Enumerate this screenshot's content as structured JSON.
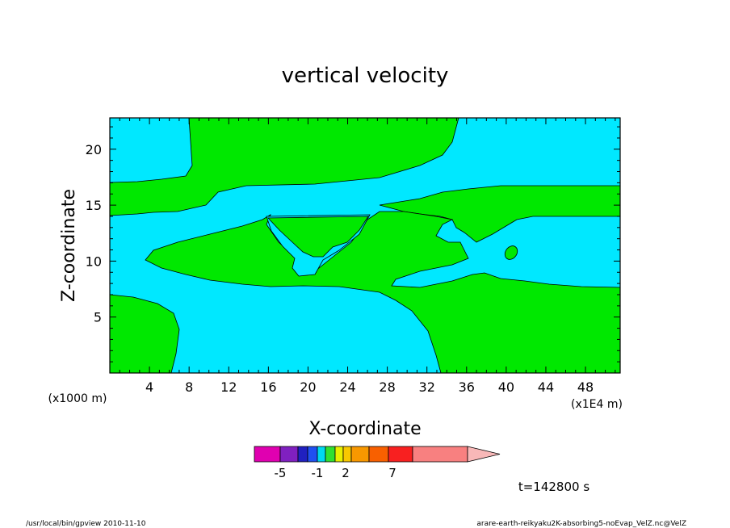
{
  "chart_data": {
    "type": "heatmap",
    "title": "vertical velocity",
    "xlabel": "X-coordinate",
    "ylabel": "Z-coordinate",
    "x_unit_left": "(x1000 m)",
    "x_unit_right": "(x1E4 m)",
    "xlim": [
      0,
      51.5
    ],
    "ylim": [
      0,
      22.8
    ],
    "x_ticks": [
      4,
      8,
      12,
      16,
      20,
      24,
      28,
      32,
      36,
      40,
      44,
      48
    ],
    "y_ticks": [
      5,
      10,
      15,
      20
    ],
    "time_label": "t=142800 s",
    "legend": {
      "colors": [
        "#e000b0",
        "#8020c0",
        "#2020c0",
        "#2050f0",
        "#00d8f0",
        "#30e030",
        "#e8f000",
        "#f8c800",
        "#f89800",
        "#f86000",
        "#f82020",
        "#f88080",
        "#f8b8b8"
      ],
      "tick_labels": [
        "-5",
        "-1",
        "2",
        "7"
      ]
    },
    "colors": {
      "negative_region": "#00e8ff",
      "positive_region": "#00e800"
    }
  },
  "footer": {
    "left": "/usr/local/bin/gpview   2010-11-10",
    "right": "arare-earth-reikyaku2K-absorbing5-noEvap_VelZ.nc@VelZ"
  }
}
